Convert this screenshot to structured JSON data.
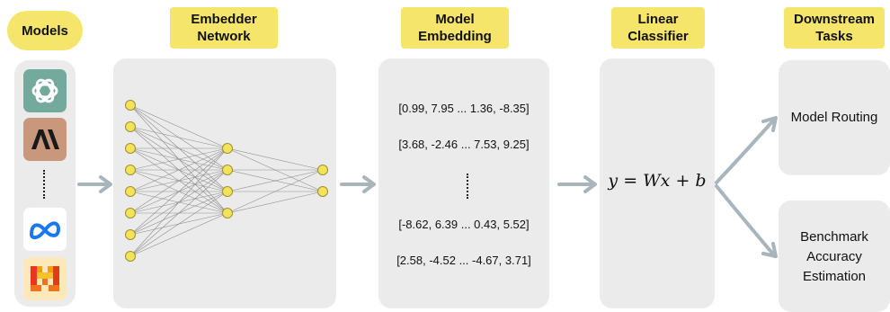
{
  "labels": {
    "models": "Models",
    "embedder": "Embedder\nNetwork",
    "embedding": "Model\nEmbedding",
    "classifier": "Linear\nClassifier",
    "downstream": "Downstream\nTasks"
  },
  "model_icons": [
    "openai-icon",
    "anthropic-icon",
    "meta-icon",
    "mistral-icon"
  ],
  "embeddings": [
    "[0.99, 7.95 ... 1.36, -8.35]",
    "[3.68, -2.46 ... 7.53, 9.25]",
    "[-8.62, 6.39 ... 0.43, 5.52]",
    "[2.58, -4.52 ... -4.67, 3.71]"
  ],
  "formula": "y = Wx + b",
  "tasks": {
    "routing": "Model Routing",
    "benchmark": "Benchmark\nAccuracy\nEstimation"
  },
  "colors": {
    "label_bg": "#f5e56b",
    "panel_bg": "#ebebeb",
    "arrow": "#a9b5bd",
    "node_fill": "#f3e25a",
    "node_stroke": "#9a9030"
  }
}
